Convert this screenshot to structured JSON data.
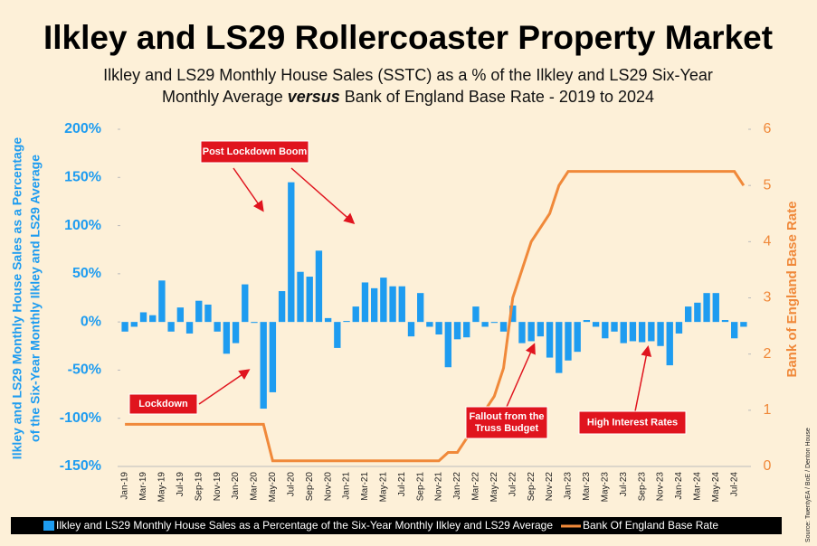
{
  "chart_data": {
    "type": "bar_line",
    "title": "Ilkley and LS29 Rollercoaster Property Market",
    "subtitle": [
      "Ilkley and LS29 Monthly House Sales (SSTC) as a % of the Ilkley and LS29 Six-Year",
      "Monthly Average ",
      "versus",
      " Bank of England Base Rate - 2019 to 2024"
    ],
    "ylabel": [
      "Ilkley and LS29 Monthly House Sales as a Percentage",
      "of the Six-Year Monthly Ilkley and LS29 Average"
    ],
    "y2label": "Bank of England Base Rate",
    "source": "Source: TwentyEA / BoE / Denton House",
    "categories": [
      "Jan-19",
      null,
      "Mar-19",
      null,
      "May-19",
      null,
      "Jul-19",
      null,
      "Sep-19",
      null,
      "Nov-19",
      null,
      "Jan-20",
      null,
      "Mar-20",
      null,
      "May-20",
      null,
      "Jul-20",
      null,
      "Sep-20",
      null,
      "Nov-20",
      null,
      "Jan-21",
      null,
      "Mar-21",
      null,
      "May-21",
      null,
      "Jul-21",
      null,
      "Sep-21",
      null,
      "Nov-21",
      null,
      "Jan-22",
      null,
      "Mar-22",
      null,
      "May-22",
      null,
      "Jul-22",
      null,
      "Sep-22",
      null,
      "Nov-22",
      null,
      "Jan-23",
      null,
      "Mar-23",
      null,
      "May-23",
      null,
      "Jul-23",
      null,
      "Sep-23",
      null,
      "Nov-23",
      null,
      "Jan-24",
      null,
      "Mar-24",
      null,
      "May-24",
      null,
      "Jul-24",
      null
    ],
    "series": [
      {
        "name": "Ilkley and LS29 Monthly House Sales as a Percentage of the Six-Year Monthly Ilkley and LS29 Average",
        "color": "#1e9cf0",
        "values": [
          -10,
          -5,
          10,
          7,
          43,
          -10,
          15,
          -12,
          22,
          18,
          -10,
          -33,
          -22,
          39,
          -1,
          -90,
          -73,
          32,
          145,
          52,
          47,
          74,
          4,
          -27,
          1,
          16,
          41,
          35,
          46,
          37,
          37,
          -15,
          30,
          -5,
          -13,
          -47,
          -18,
          -16,
          16,
          -5,
          -1,
          -10,
          17,
          -22,
          -20,
          -15,
          -37,
          -53,
          -40,
          -31,
          2,
          -5,
          -17,
          -10,
          -22,
          -20,
          -21,
          -20,
          -25,
          -45,
          -12,
          16,
          20,
          30,
          30,
          2,
          -17,
          -5
        ]
      },
      {
        "name": "Bank Of England Base Rate",
        "color": "#f0893a",
        "axis": "y2",
        "values": [
          0.75,
          0.75,
          0.75,
          0.75,
          0.75,
          0.75,
          0.75,
          0.75,
          0.75,
          0.75,
          0.75,
          0.75,
          0.75,
          0.75,
          0.75,
          0.75,
          0.1,
          0.1,
          0.1,
          0.1,
          0.1,
          0.1,
          0.1,
          0.1,
          0.1,
          0.1,
          0.1,
          0.1,
          0.1,
          0.1,
          0.1,
          0.1,
          0.1,
          0.1,
          0.1,
          0.25,
          0.25,
          0.5,
          0.75,
          1.0,
          1.25,
          1.75,
          3.0,
          3.5,
          4.0,
          4.25,
          4.5,
          5.0,
          5.25,
          5.25,
          5.25,
          5.25,
          5.25,
          5.25,
          5.25,
          5.25,
          5.25,
          5.25,
          5.25,
          5.25,
          5.25,
          5.25,
          5.25,
          5.25,
          5.25,
          5.25,
          5.25,
          5.0
        ]
      }
    ],
    "ylim": [
      -150,
      200
    ],
    "yticks": [
      {
        "value": -150,
        "label": "-150%"
      },
      {
        "value": -100,
        "label": "-100%"
      },
      {
        "value": -50,
        "label": "-50%"
      },
      {
        "value": 0,
        "label": "0%"
      },
      {
        "value": 50,
        "label": "50%"
      },
      {
        "value": 100,
        "label": "100%"
      },
      {
        "value": 150,
        "label": "150%"
      },
      {
        "value": 200,
        "label": "200%"
      }
    ],
    "y2lim": [
      0,
      6
    ],
    "y2ticks": [
      0,
      1,
      2,
      3,
      4,
      5,
      6
    ],
    "legend": "bottom",
    "annotations": [
      {
        "text": [
          "Post Lockdown Boom"
        ]
      },
      {
        "text": [
          "Lockdown"
        ]
      },
      {
        "text": [
          "Fallout from the",
          "Truss Budget"
        ]
      },
      {
        "text": [
          "High Interest Rates"
        ]
      }
    ]
  }
}
